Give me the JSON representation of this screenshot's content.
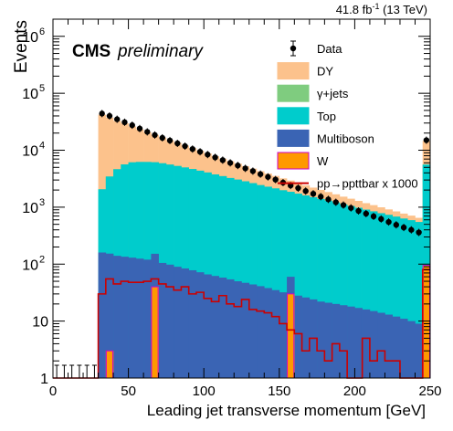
{
  "chart_data": {
    "type": "bar",
    "stacked": true,
    "log_scale_y": true,
    "lumi_label": "41.8 fb",
    "lumi_sup": "-1",
    "lumi_energy": " (13 TeV)",
    "cms_label": "CMS",
    "prelim_label": "preliminary",
    "xlabel": "Leading jet transverse momentum [GeV]",
    "ylabel": "Events",
    "xlim": [
      0,
      250
    ],
    "ylim": [
      1,
      2000000
    ],
    "x_ticks": [
      "0",
      "50",
      "100",
      "150",
      "200",
      "250"
    ],
    "y_ticks": [
      "1",
      "10",
      "10",
      "10",
      "10",
      "10",
      "10"
    ],
    "y_tick_exps": [
      "",
      "",
      "2",
      "3",
      "4",
      "5",
      "6"
    ],
    "legend": [
      {
        "label": "Data",
        "kind": "marker",
        "color": "#000000"
      },
      {
        "label": "DY",
        "kind": "fill",
        "color": "#fcc28c",
        "edge": "#fcc28c"
      },
      {
        "label": "γ+jets",
        "kind": "fill",
        "color": "#7fcc7f",
        "edge": "#7fcc7f"
      },
      {
        "label": "Top",
        "kind": "fill",
        "color": "#00cccc",
        "edge": "#00cccc"
      },
      {
        "label": "Multiboson",
        "kind": "fill",
        "color": "#3a64b4",
        "edge": "#3a64b4"
      },
      {
        "label": "W",
        "kind": "fill",
        "color": "#ff9900",
        "edge": "#cc00cc"
      },
      {
        "label": "pp→ppttbar x 1000",
        "kind": "line",
        "color": "#cc0000"
      }
    ],
    "x_bins_start": 0,
    "bin_width": 5,
    "series": [
      {
        "name": "W",
        "color": "#ff9900",
        "values": [
          0,
          0,
          0,
          0,
          0,
          0,
          0,
          3.0,
          0,
          0,
          0,
          0,
          0,
          40,
          0,
          0,
          0,
          0,
          0,
          0,
          0,
          0,
          0,
          0,
          0,
          0,
          0,
          0,
          0,
          0,
          0,
          30,
          0,
          0,
          0,
          0,
          0,
          0,
          0,
          0,
          0,
          0,
          0,
          0,
          0,
          0,
          0,
          0,
          0,
          95
        ]
      },
      {
        "name": "Multiboson",
        "color": "#3a64b4",
        "values": [
          0,
          0,
          0,
          0,
          0,
          0,
          160,
          150,
          140,
          135,
          130,
          125,
          120,
          112,
          105,
          98,
          90,
          84,
          78,
          72,
          66,
          62,
          58,
          54,
          50,
          47,
          44,
          41,
          38,
          35,
          32,
          30,
          28,
          26,
          24,
          22,
          21,
          20,
          19,
          18,
          17,
          16,
          15,
          14,
          13,
          12,
          11,
          10,
          9,
          0
        ]
      },
      {
        "name": "Top",
        "color": "#00cccc",
        "values": [
          0,
          0,
          0,
          0,
          0,
          0,
          1900,
          3300,
          4500,
          5500,
          6000,
          6100,
          6100,
          6000,
          5800,
          5500,
          5200,
          4900,
          4600,
          4300,
          4000,
          3700,
          3450,
          3200,
          3000,
          2800,
          2600,
          2400,
          2250,
          2100,
          1950,
          1800,
          1700,
          1580,
          1470,
          1370,
          1280,
          1190,
          1100,
          1030,
          960,
          890,
          830,
          770,
          720,
          670,
          620,
          580,
          540,
          5500
        ]
      },
      {
        "name": "γ+jets",
        "color": "#7fcc7f",
        "values": [
          0,
          0,
          0,
          0,
          0,
          0,
          4,
          4,
          4,
          4,
          4,
          4,
          4,
          3,
          3,
          3,
          3,
          3,
          3,
          3,
          3,
          3,
          3,
          2,
          2,
          2,
          2,
          2,
          2,
          2,
          2,
          2,
          2,
          2,
          2,
          2,
          2,
          2,
          1,
          1,
          1,
          1,
          1,
          1,
          1,
          1,
          1,
          1,
          1,
          1
        ]
      },
      {
        "name": "DY",
        "color": "#fcc28c",
        "values": [
          0,
          0,
          0,
          0,
          0,
          0,
          40000,
          34000,
          28000,
          24000,
          20000,
          17000,
          14500,
          12500,
          10800,
          9400,
          8200,
          7100,
          6200,
          5400,
          4700,
          4100,
          3600,
          3150,
          2760,
          2410,
          2110,
          1840,
          1600,
          1400,
          1220,
          1070,
          930,
          810,
          710,
          620,
          540,
          470,
          410,
          360,
          310,
          270,
          240,
          210,
          180,
          160,
          140,
          120,
          100,
          9000
        ]
      }
    ],
    "data_points": [
      0,
      0,
      0,
      0,
      0,
      0,
      44000,
      40000,
      35000,
      31000,
      27500,
      24000,
      21000,
      18500,
      16500,
      14800,
      13200,
      11800,
      10500,
      9400,
      8400,
      7500,
      6700,
      6000,
      5400,
      4800,
      4300,
      3800,
      3400,
      3050,
      2700,
      2400,
      2160,
      1920,
      1720,
      1530,
      1370,
      1220,
      1090,
      970,
      860,
      770,
      690,
      620,
      550,
      490,
      440,
      400,
      360,
      15000
    ],
    "signal": {
      "name": "pp→ppttbar x 1000",
      "color": "#cc0000",
      "values": [
        0,
        0,
        0,
        0,
        0,
        0,
        30,
        55,
        45,
        50,
        48,
        48,
        50,
        55,
        45,
        40,
        35,
        40,
        30,
        32,
        25,
        22,
        28,
        20,
        18,
        24,
        16,
        15,
        14,
        12,
        9,
        7,
        6,
        3,
        5,
        3,
        2,
        4,
        3,
        1,
        1,
        5,
        2,
        3,
        2,
        2,
        1,
        0.5,
        1,
        80
      ]
    }
  }
}
